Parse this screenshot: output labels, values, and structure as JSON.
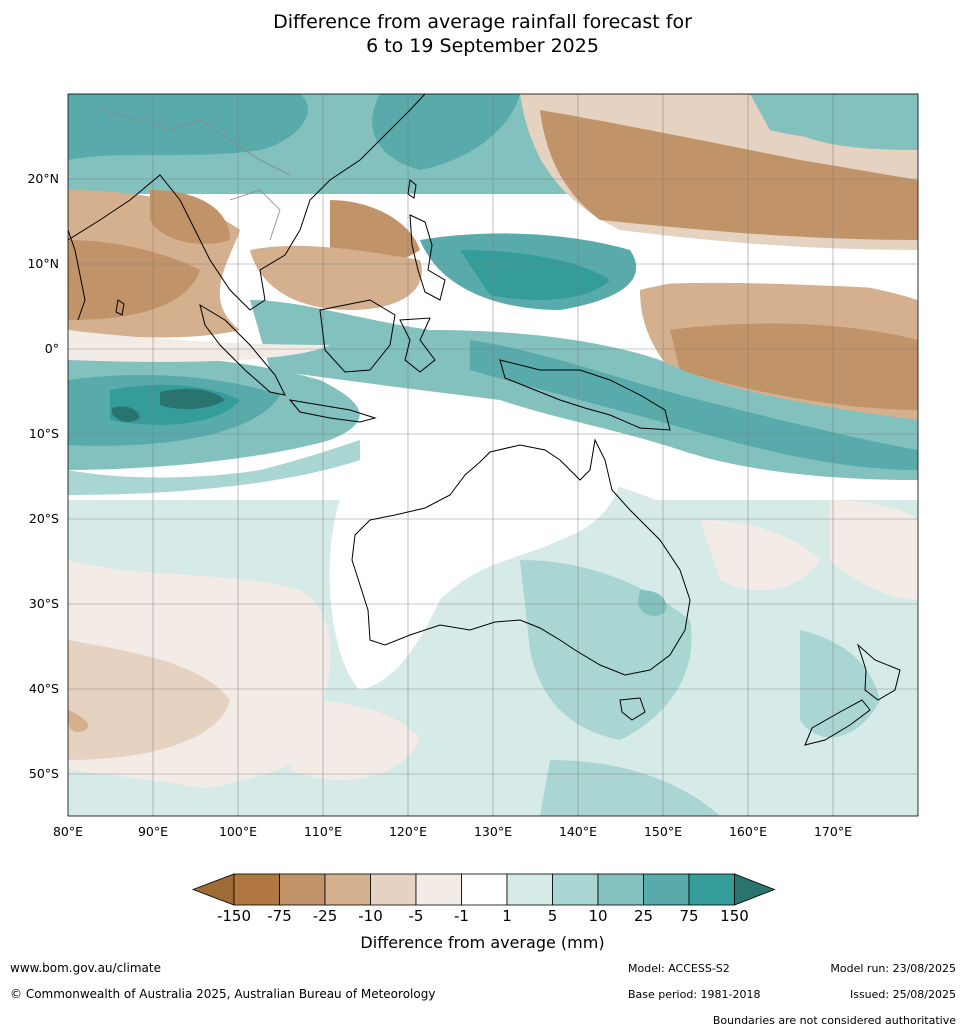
{
  "title_line1": "Difference from average rainfall forecast for",
  "title_line2": "6 to 19 September 2025",
  "lat_labels": [
    "20°N",
    "10°N",
    "0°",
    "10°S",
    "20°S",
    "30°S",
    "40°S",
    "50°S"
  ],
  "lon_labels": [
    "80°E",
    "90°E",
    "100°E",
    "110°E",
    "120°E",
    "130°E",
    "140°E",
    "150°E",
    "160°E",
    "170°E"
  ],
  "colorbar": {
    "title": "Difference from average (mm)",
    "tick_labels": [
      "-150",
      "-75",
      "-25",
      "-10",
      "-5",
      "-1",
      "1",
      "5",
      "10",
      "25",
      "75",
      "150"
    ],
    "colors": [
      "#a06c36",
      "#b07840",
      "#c09468",
      "#d4b08e",
      "#e6d2c0",
      "#f3ece6",
      "#ffffff",
      "#d6eae8",
      "#a9d5d2",
      "#82c1be",
      "#58abaa",
      "#349d99",
      "#2a7470"
    ]
  },
  "footer": {
    "url": "www.bom.gov.au/climate",
    "copyright": "© Commonwealth of Australia 2025, Australian Bureau of Meteorology",
    "model": "Model: ACCESS-S2",
    "base_period": "Base period: 1981-2018",
    "model_run": "Model run: 23/08/2025",
    "issued": "Issued: 25/08/2025",
    "disclaimer": "Boundaries are not considered authoritative"
  }
}
